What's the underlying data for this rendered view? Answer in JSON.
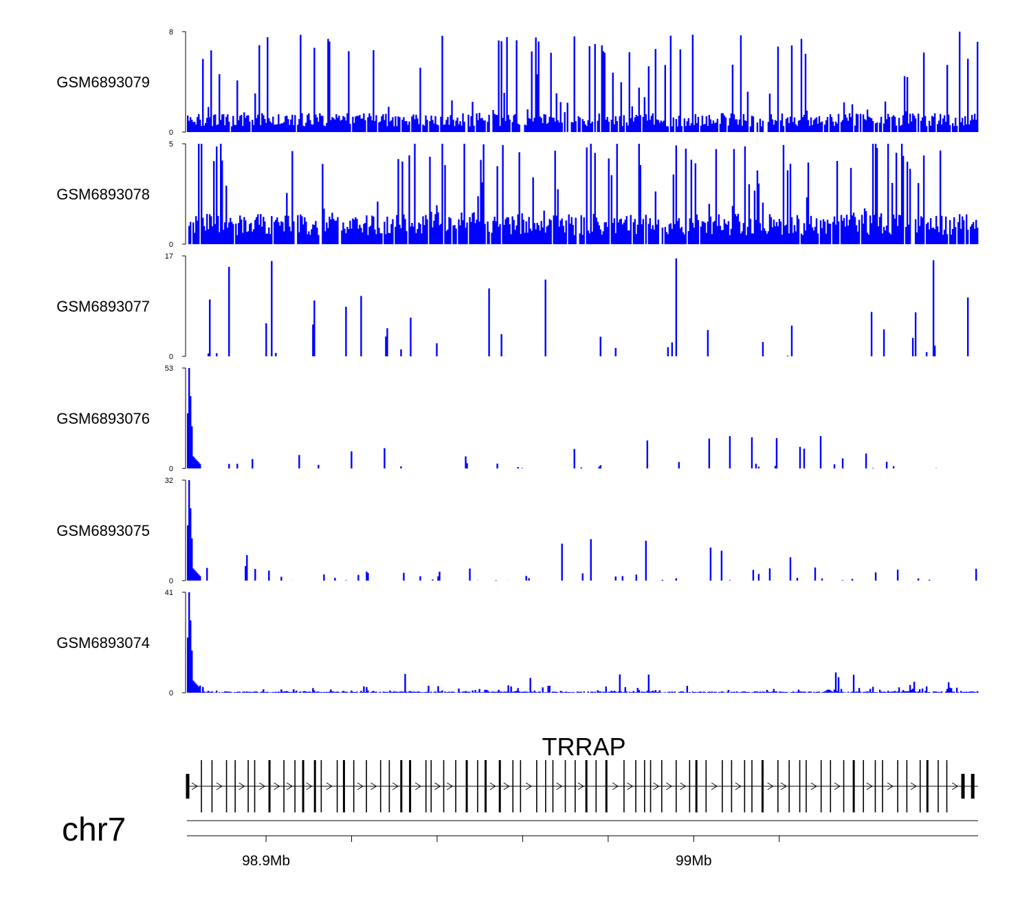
{
  "chart_data": {
    "type": "area",
    "title": "",
    "fill_color": "#0000ff",
    "region": {
      "chromosome": "chr7",
      "x_range_mb": [
        98.8815,
        99.0665
      ]
    },
    "x_axis": {
      "unit": "Mb",
      "ticks_mb": [
        98.88,
        98.9,
        98.92,
        98.94,
        98.96,
        98.98,
        99.0,
        99.02
      ],
      "labels": [
        {
          "label": "98.9Mb",
          "at_mb": 98.9
        },
        {
          "label": "99Mb",
          "at_mb": 99.0
        }
      ]
    },
    "tracks": [
      {
        "name": "GSM6893079",
        "ymax": 8,
        "ymin": 0,
        "baseline": 1.5,
        "peak_height": 8.0,
        "peak_prob": 0.12,
        "sharpness": 3.0,
        "spike_prob": 0.04,
        "spike_min": 6,
        "spike_max": 8,
        "enrich_mult": 1.0
      },
      {
        "name": "GSM6893078",
        "ymax": 5,
        "ymin": 0,
        "baseline": 1.5,
        "peak_height": 4.8,
        "peak_prob": 0.16,
        "sharpness": 2.4,
        "spike_prob": 0.05,
        "spike_min": 4,
        "spike_max": 5,
        "enrich_mult": 1.0
      },
      {
        "name": "GSM6893077",
        "ymax": 17,
        "ymin": 0,
        "baseline": 0.0,
        "peak_height": 10.0,
        "peak_prob": 0.055,
        "sharpness": 1.4,
        "spike_prob": 0.01,
        "spike_min": 10,
        "spike_max": 17,
        "enrich_mult": 1.0
      },
      {
        "name": "GSM6893076",
        "ymax": 53,
        "ymin": 0,
        "baseline": 0.0,
        "peak_height": 8.0,
        "peak_prob": 0.06,
        "sharpness": 1.6,
        "spike_prob": 0.012,
        "spike_min": 9,
        "spike_max": 18,
        "enrich_mult": 1.7,
        "promoter_peak": 53
      },
      {
        "name": "GSM6893075",
        "ymax": 32,
        "ymin": 0,
        "baseline": 0.0,
        "peak_height": 5.0,
        "peak_prob": 0.08,
        "sharpness": 1.8,
        "spike_prob": 0.014,
        "spike_min": 7,
        "spike_max": 14,
        "enrich_mult": 1.8,
        "promoter_peak": 32
      },
      {
        "name": "GSM6893074",
        "ymax": 41,
        "ymin": 0,
        "baseline": 0.5,
        "peak_height": 2.5,
        "peak_prob": 0.2,
        "sharpness": 2.2,
        "spike_prob": 0.008,
        "spike_min": 4,
        "spike_max": 8,
        "enrich_mult": 3.2,
        "promoter_peak": 41
      }
    ],
    "enriched_regions_mb": [
      [
        99.0305,
        99.034
      ],
      [
        99.0485,
        99.052
      ]
    ],
    "gene": {
      "name": "TRRAP",
      "strand": "+",
      "start_mb": 98.8815,
      "end_mb": 99.0665,
      "exon_count": 72
    }
  }
}
